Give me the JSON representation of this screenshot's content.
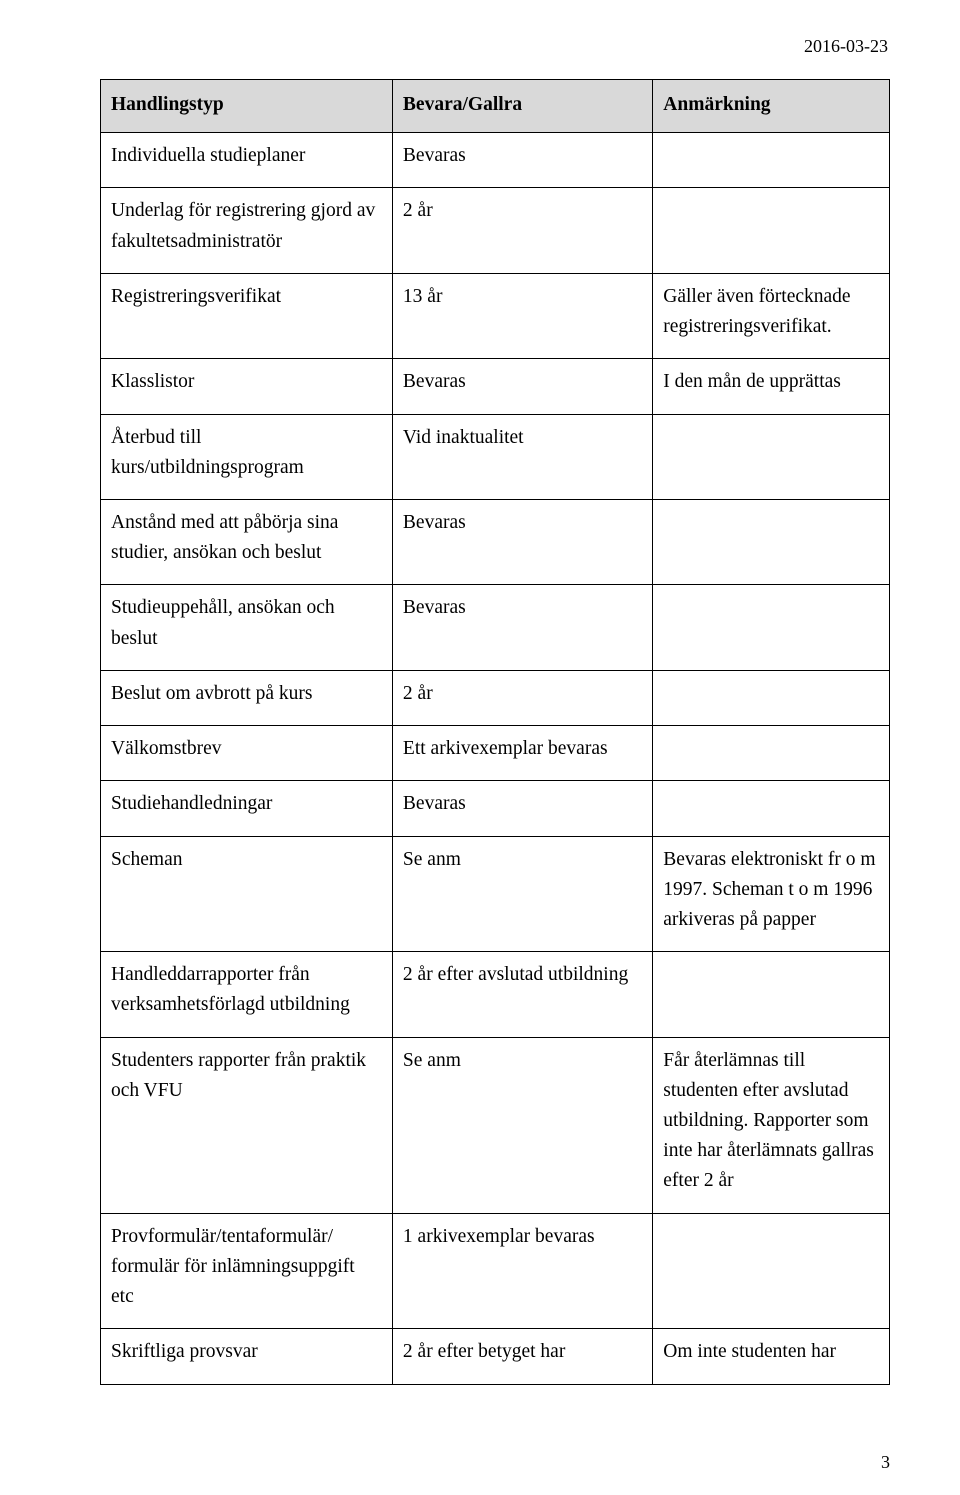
{
  "date": "2016-03-23",
  "page_number": "3",
  "headers": {
    "col1": "Handlingstyp",
    "col2": "Bevara/Gallra",
    "col3": "Anmärkning"
  },
  "rows": [
    {
      "c1": "Individuella studieplaner",
      "c2": "Bevaras",
      "c3": ""
    },
    {
      "c1": "Underlag för registrering gjord av fakultetsadministratör",
      "c2": "2 år",
      "c3": ""
    },
    {
      "c1": "Registreringsverifikat",
      "c2": "13 år",
      "c3": "Gäller även förtecknade registreringsverifikat."
    },
    {
      "c1": "Klasslistor",
      "c2": "Bevaras",
      "c3": "I den mån de upprättas"
    },
    {
      "c1": "Återbud till kurs/utbildningsprogram",
      "c2": "Vid inaktualitet",
      "c3": ""
    },
    {
      "c1": "Anstånd med att påbörja sina studier, ansökan och beslut",
      "c2": "Bevaras",
      "c3": ""
    },
    {
      "c1": "Studieuppehåll, ansökan och beslut",
      "c2": "Bevaras",
      "c3": ""
    },
    {
      "c1": "Beslut om avbrott på kurs",
      "c2": "2 år",
      "c3": ""
    },
    {
      "c1": "Välkomstbrev",
      "c2": "Ett arkivexemplar bevaras",
      "c3": ""
    },
    {
      "c1": "Studiehandledningar",
      "c2": "Bevaras",
      "c3": ""
    },
    {
      "c1": "Scheman",
      "c2": "Se anm",
      "c3": "Bevaras elektroniskt fr o m 1997. Scheman t o m 1996 arkiveras på papper"
    },
    {
      "c1": "Handleddarrapporter från verksamhetsförlagd utbildning",
      "c2": "2 år efter avslutad utbildning",
      "c3": ""
    },
    {
      "c1": "Studenters rapporter från praktik och VFU",
      "c2": "Se anm",
      "c3": "Får återlämnas till studenten efter avslutad utbildning. Rapporter som inte har återlämnats gallras efter 2 år"
    },
    {
      "c1": "Provformulär/tentaformulär/ formulär för inlämningsuppgift etc",
      "c2": "1 arkivexemplar bevaras",
      "c3": ""
    },
    {
      "c1": "Skriftliga provsvar",
      "c2": "2 år efter betyget har",
      "c3": "Om inte studenten har"
    }
  ]
}
